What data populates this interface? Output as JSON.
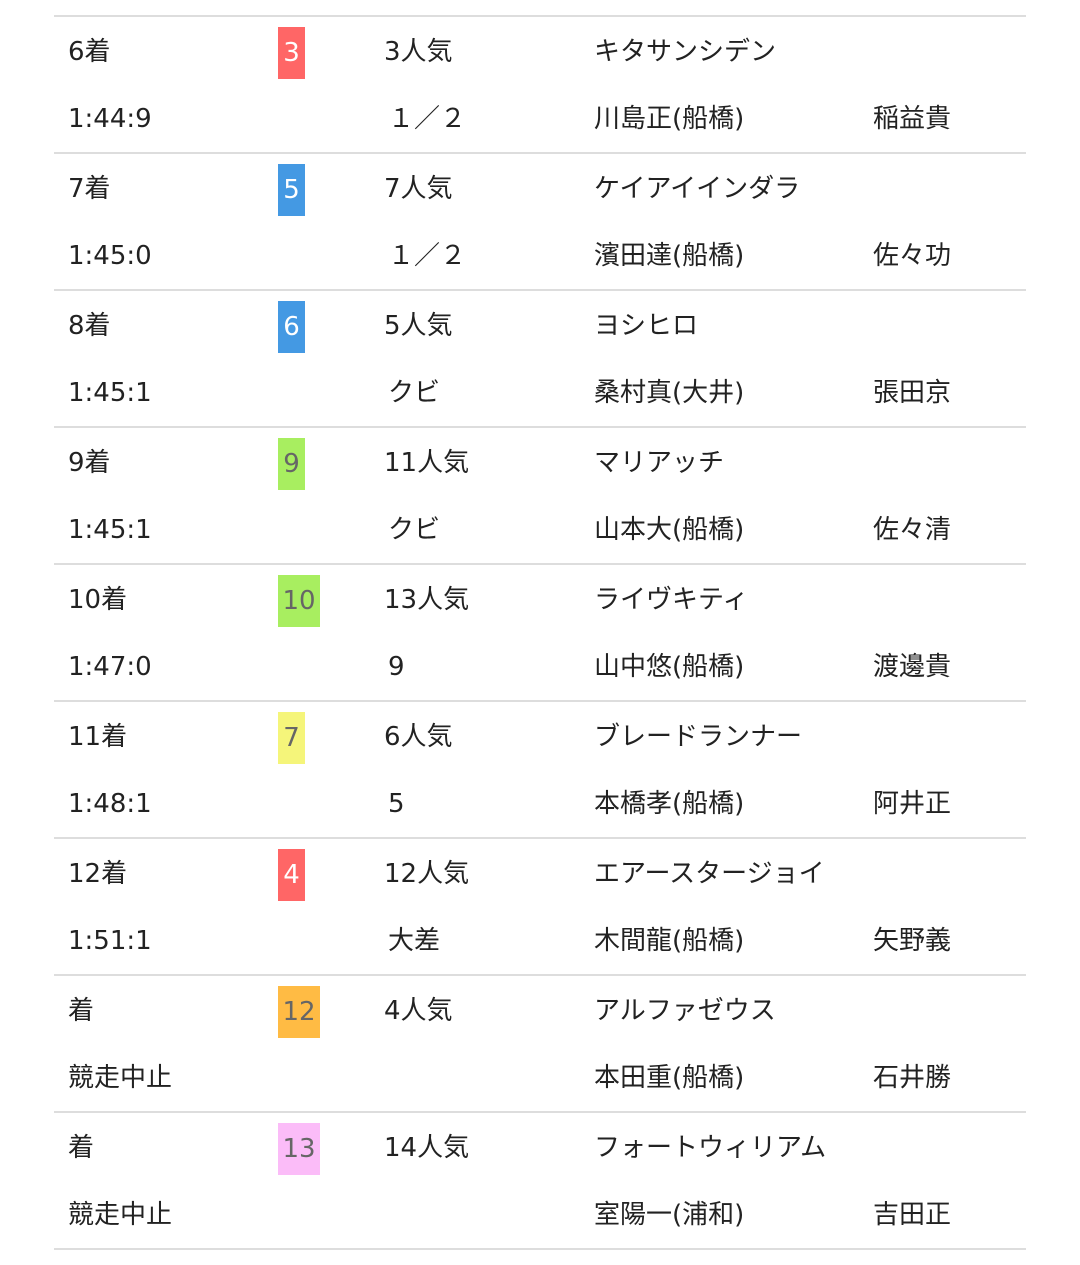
{
  "rows": [
    {
      "rank": "6着",
      "time": "1:44:9",
      "num": "3",
      "badge_bg": "#ff6666",
      "badge_fg": "#ffffff",
      "popularity": "3人気",
      "margin": "１／２",
      "horse": "キタサンシデン",
      "jockey": "川島正(船橋)",
      "trainer": "稲益貴"
    },
    {
      "rank": "7着",
      "time": "1:45:0",
      "num": "5",
      "badge_bg": "#4499e3",
      "badge_fg": "#ffffff",
      "popularity": "7人気",
      "margin": "１／２",
      "horse": "ケイアイインダラ",
      "jockey": "濱田達(船橋)",
      "trainer": "佐々功"
    },
    {
      "rank": "8着",
      "time": "1:45:1",
      "num": "6",
      "badge_bg": "#4499e3",
      "badge_fg": "#ffffff",
      "popularity": "5人気",
      "margin": "クビ",
      "horse": "ヨシヒロ",
      "jockey": "桑村真(大井)",
      "trainer": "張田京"
    },
    {
      "rank": "9着",
      "time": "1:45:1",
      "num": "9",
      "badge_bg": "#a8ee60",
      "badge_fg": "#666666",
      "popularity": "11人気",
      "margin": "クビ",
      "horse": "マリアッチ",
      "jockey": "山本大(船橋)",
      "trainer": "佐々清"
    },
    {
      "rank": "10着",
      "time": "1:47:0",
      "num": "10",
      "badge_bg": "#a8ee60",
      "badge_fg": "#666666",
      "popularity": "13人気",
      "margin": "9",
      "horse": "ライヴキティ",
      "jockey": "山中悠(船橋)",
      "trainer": "渡邊貴"
    },
    {
      "rank": "11着",
      "time": "1:48:1",
      "num": "7",
      "badge_bg": "#f5f57a",
      "badge_fg": "#666666",
      "popularity": "6人気",
      "margin": "5",
      "horse": "ブレードランナー",
      "jockey": "本橋孝(船橋)",
      "trainer": "阿井正"
    },
    {
      "rank": "12着",
      "time": "1:51:1",
      "num": "4",
      "badge_bg": "#ff6666",
      "badge_fg": "#ffffff",
      "popularity": "12人気",
      "margin": "大差",
      "horse": "エアースタージョイ",
      "jockey": "木間龍(船橋)",
      "trainer": "矢野義"
    },
    {
      "rank": "着",
      "time": "競走中止",
      "num": "12",
      "badge_bg": "#ffbb44",
      "badge_fg": "#666666",
      "popularity": "4人気",
      "margin": "",
      "horse": "アルファゼウス",
      "jockey": "本田重(船橋)",
      "trainer": "石井勝"
    },
    {
      "rank": "着",
      "time": "競走中止",
      "num": "13",
      "badge_bg": "#fbbcf8",
      "badge_fg": "#666666",
      "popularity": "14人気",
      "margin": "",
      "horse": "フォートウィリアム",
      "jockey": "室陽一(浦和)",
      "trainer": "吉田正"
    }
  ]
}
